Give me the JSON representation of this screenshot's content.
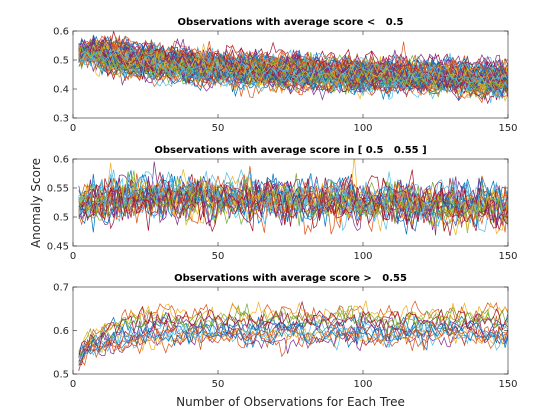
{
  "figure": {
    "ylabel": "Anomaly Score",
    "xlabel": "Number of Observations for Each Tree"
  },
  "palette": [
    "#0072bd",
    "#d95319",
    "#edb120",
    "#7e2f8e",
    "#77ac30",
    "#4dbeee",
    "#a2142f"
  ],
  "chart_data": [
    {
      "type": "line",
      "title": "Observations with average score <   0.5",
      "xlim": [
        0,
        150
      ],
      "ylim": [
        0.3,
        0.6
      ],
      "xticks": [
        0,
        50,
        100,
        150
      ],
      "yticks": [
        0.3,
        0.4,
        0.5,
        0.6
      ],
      "xtick_labels": [
        "0",
        "50",
        "100",
        "150"
      ],
      "ytick_labels": [
        "0.3",
        "0.4",
        "0.5",
        "0.6"
      ],
      "x_range": [
        2,
        150
      ],
      "trend": {
        "x": [
          2,
          5,
          20,
          50,
          100,
          150
        ],
        "y": [
          0.52,
          0.53,
          0.5,
          0.47,
          0.45,
          0.435
        ]
      },
      "spread": 0.035,
      "noise": 0.018,
      "series_count": 90
    },
    {
      "type": "line",
      "title": "Observations with average score in [ 0.5   0.55 ]",
      "xlim": [
        0,
        150
      ],
      "ylim": [
        0.45,
        0.6
      ],
      "xticks": [
        0,
        50,
        100,
        150
      ],
      "yticks": [
        0.45,
        0.5,
        0.55,
        0.6
      ],
      "xtick_labels": [
        "0",
        "50",
        "100",
        "150"
      ],
      "ytick_labels": [
        "0.45",
        "0.5",
        "0.55",
        "0.6"
      ],
      "x_range": [
        2,
        150
      ],
      "trend": {
        "x": [
          2,
          10,
          40,
          80,
          120,
          150
        ],
        "y": [
          0.52,
          0.535,
          0.535,
          0.53,
          0.525,
          0.52
        ]
      },
      "spread": 0.012,
      "noise": 0.016,
      "series_count": 28
    },
    {
      "type": "line",
      "title": "Observations with average score >   0.55",
      "xlim": [
        0,
        150
      ],
      "ylim": [
        0.5,
        0.7
      ],
      "xticks": [
        0,
        50,
        100,
        150
      ],
      "yticks": [
        0.5,
        0.6,
        0.7
      ],
      "xtick_labels": [
        "0",
        "50",
        "100",
        "150"
      ],
      "ytick_labels": [
        "0.5",
        "0.6",
        "0.7"
      ],
      "x_range": [
        2,
        150
      ],
      "trend": {
        "x": [
          2,
          5,
          15,
          30,
          60,
          100,
          150
        ],
        "y": [
          0.53,
          0.56,
          0.585,
          0.6,
          0.6,
          0.6,
          0.6
        ]
      },
      "spread": 0.03,
      "noise": 0.012,
      "series_count": 16
    }
  ]
}
